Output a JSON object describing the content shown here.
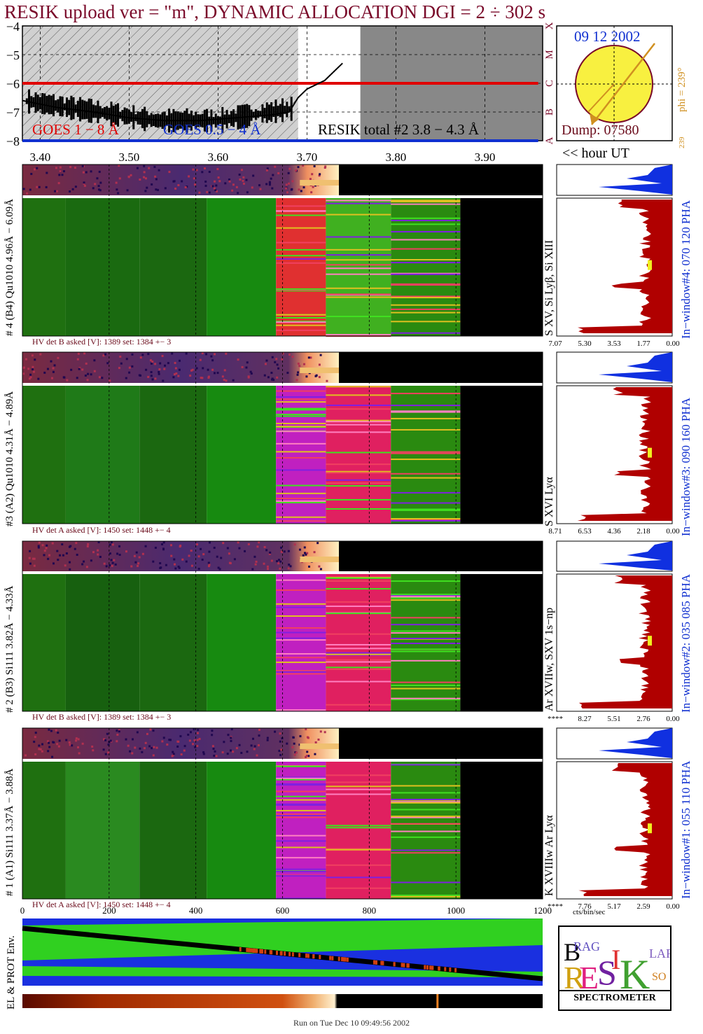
{
  "header": {
    "title": "RESIK upload ver = \"m\", DYNAMIC ALLOCATION  DGI =   2 ÷ 302 s"
  },
  "lightcurve": {
    "y_ticks": [
      "−4",
      "−5",
      "−6",
      "−7",
      "−8"
    ],
    "goes_long": "GOES 1 − 8 Å",
    "goes_short": "GOES 0.5 − 4 Å",
    "resik_total": "RESIK total #2  3.8 − 4.3 Å",
    "flare_classes": [
      "X",
      "M",
      "C",
      "B",
      "A"
    ]
  },
  "time_axis": {
    "ticks": [
      "3.40",
      "3.50",
      "3.60",
      "3.70",
      "3.80",
      "3.90"
    ],
    "unit_label": "<< hour UT"
  },
  "sun": {
    "date": "09 12 2002",
    "phi": "phi = 239°",
    "phi_small": "239",
    "corner": "239",
    "dump": "Dump: 07580"
  },
  "channels": [
    {
      "id": 4,
      "left_label": "# 4 (B4) Qu1010 4.96Å − 6.09Å",
      "line_label": "S XV, Si Lyβ, Si XIII",
      "window": "In−window#4:  070 120 PHA",
      "hv": "HV det B asked [V]:  1389 set:  1384 +−   3",
      "scale": [
        "7.07",
        "5.30",
        "3.53",
        "1.77",
        "0.00"
      ]
    },
    {
      "id": 3,
      "left_label": "#3 (A2) Qu1010  4.31Å − 4.89Å",
      "line_label": "S XVI Lyα",
      "window": "In−window#3:  090 160 PHA",
      "hv": "HV det A asked [V]:  1450 set:  1448 +−   4",
      "scale": [
        "8.71",
        "6.53",
        "4.36",
        "2.18",
        "0.00"
      ]
    },
    {
      "id": 2,
      "left_label": "# 2 (B3) Si111  3.82Å − 4.33Å",
      "line_label": "Ar XVIIw, SXV 1s−np",
      "window": "In−window#2:  035 085 PHA",
      "hv": "HV det B asked [V]:  1389 set:  1384 +−   3",
      "scale": [
        "****",
        "8.27",
        "5.51",
        "2.76",
        "0.00"
      ]
    },
    {
      "id": 1,
      "left_label": "# 1 (A1) Si111  3.37Å − 3.88Å",
      "line_label": "K XVIIIw  Ar Lyα",
      "window": "In−window#1:  055 110 PHA",
      "hv": "HV det A asked [V]:  1450 set:  1448 +−   4",
      "scale": [
        "****",
        "7.76",
        "5.17",
        "2.59",
        "0.00"
      ]
    }
  ],
  "bin_axis": {
    "ticks": [
      "0",
      "200",
      "400",
      "600",
      "800",
      "1000",
      "1200"
    ],
    "unit": "cts/bin/sec"
  },
  "env": {
    "label": "EL & PROT Env."
  },
  "logo": {
    "bottom": "SPECTROMETER"
  },
  "footer": "Run on Tue Dec 10 09:49:56 2002",
  "colors": {
    "title": "#7a0a2a",
    "goes_long": "#e00000",
    "goes_short": "#1030d0",
    "sun_fill": "#f8f040",
    "accent": "#d09020",
    "pha_red": "#b00000",
    "pha_blue": "#1030e0",
    "green": "#1a7a10"
  },
  "chart_data": {
    "type": "line",
    "title": "RESIK upload ver = \"m\", DYNAMIC ALLOCATION  DGI =   2 ÷ 302 s",
    "xlabel": "<< hour UT",
    "x_ticks": [
      "3.40",
      "3.50",
      "3.60",
      "3.70",
      "3.80",
      "3.90"
    ],
    "y_ticks": [
      "−4",
      "−5",
      "−6",
      "−7",
      "−8"
    ],
    "ylim": [
      -8,
      -4
    ],
    "series": [
      {
        "name": "GOES 1 − 8 Å",
        "x": [
          3.38,
          3.45,
          3.55,
          3.65,
          3.7,
          3.75,
          3.85,
          3.96
        ],
        "values": [
          -6.0,
          -6.0,
          -6.0,
          -6.0,
          -6.0,
          -6.0,
          -6.0,
          -6.0
        ]
      },
      {
        "name": "GOES 0.5 − 4 Å",
        "x": [
          3.38,
          3.45,
          3.55,
          3.65,
          3.7,
          3.75,
          3.85,
          3.96
        ],
        "values": [
          -8.0,
          -8.0,
          -8.0,
          -8.0,
          -8.0,
          -8.0,
          -8.0,
          -8.0
        ]
      },
      {
        "name": "RESIK total #2  3.8 − 4.3 Å",
        "x": [
          3.38,
          3.42,
          3.46,
          3.5,
          3.54,
          3.58,
          3.62,
          3.66,
          3.68,
          3.69,
          3.7,
          3.72,
          3.74
        ],
        "values": [
          -6.6,
          -6.85,
          -7.0,
          -7.2,
          -7.3,
          -7.3,
          -7.2,
          -7.1,
          -7.0,
          -6.5,
          -6.2,
          -5.9,
          -5.3
        ]
      }
    ]
  }
}
